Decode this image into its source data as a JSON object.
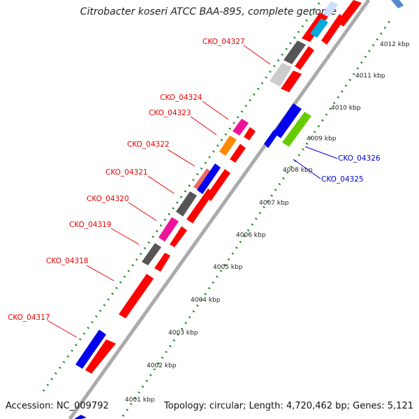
{
  "title": "Citrobacter koseri ATCC BAA-895, complete genome",
  "footer": {
    "accession": "Accession: NC_009792",
    "topology": "Topology: circular; Length: 4,720,462 bp; Genes: 5,121"
  },
  "kbp_labels": [
    "4001 kbp",
    "4002 kbp",
    "4003 kbp",
    "4004 kbp",
    "4005 kbp",
    "4006 kbp",
    "4007 kbp",
    "4008 kbp",
    "4009 kbp",
    "4010 kbp",
    "4011 kbp",
    "4012 kbp"
  ],
  "gene_labels_left": [
    "CKO_04317",
    "CKO_04318",
    "CKO_04319",
    "CKO_04320",
    "CKO_04321",
    "CKO_04322",
    "CKO_04323",
    "CKO_04324",
    "CKO_04327"
  ],
  "gene_labels_right": [
    "CKO_04325",
    "CKO_04326"
  ],
  "colors": {
    "left_label": "#e60000",
    "right_label": "#0000cc",
    "backbone": "#aaaaaa",
    "tick_dots": "#1f8a1f",
    "red_gene": "#ff0000",
    "blue_gene": "#0000ee",
    "green_gene": "#66cc00",
    "gray_gene": "#555555",
    "magenta_gene": "#ee1199",
    "orange_gene": "#ff8800",
    "salmon_gene": "#ee6666",
    "cyan_gene": "#00aadd",
    "lightgray_gene": "#cccccc"
  }
}
